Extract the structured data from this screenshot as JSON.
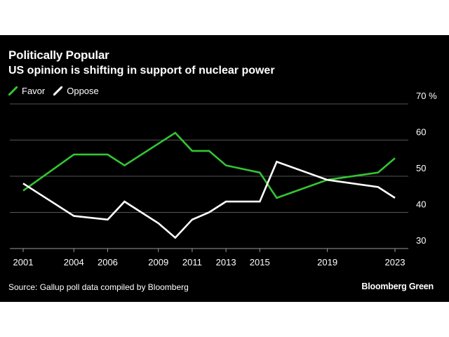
{
  "header": {
    "title": "Politically Popular",
    "subtitle": "US opinion is shifting in support of nuclear power"
  },
  "footer": {
    "source": "Source: Gallup poll data compiled by Bloomberg",
    "brand": "Bloomberg Green"
  },
  "chart_data": {
    "type": "line",
    "title": "Politically Popular",
    "subtitle": "US opinion is shifting in support of nuclear power",
    "xlim": [
      2001,
      2023
    ],
    "ylim": [
      30,
      70
    ],
    "y_ticks": [
      30,
      40,
      50,
      60,
      70
    ],
    "y_tick_labels": [
      "30",
      "40",
      "50",
      "60",
      "70 %"
    ],
    "x_ticks": [
      2001,
      2004,
      2006,
      2009,
      2011,
      2013,
      2015,
      2019,
      2023
    ],
    "x_tick_labels": [
      "2001",
      "2004",
      "2006",
      "2009",
      "2011",
      "2013",
      "2015",
      "2019",
      "2023"
    ],
    "grid": true,
    "legend": "top-left",
    "series": [
      {
        "name": "Favor",
        "color": "#33c533",
        "x": [
          2001,
          2004,
          2005,
          2006,
          2007,
          2010,
          2011,
          2012,
          2013,
          2015,
          2016,
          2019,
          2022,
          2023
        ],
        "values": [
          46,
          56,
          56,
          56,
          53,
          62,
          57,
          57,
          53,
          51,
          44,
          49,
          51,
          55
        ]
      },
      {
        "name": "Oppose",
        "color": "#ffffff",
        "x": [
          2001,
          2004,
          2005,
          2006,
          2007,
          2009,
          2010,
          2011,
          2012,
          2013,
          2015,
          2016,
          2019,
          2022,
          2023
        ],
        "values": [
          48,
          39,
          38.5,
          38,
          43,
          37,
          33,
          38,
          40,
          43,
          43,
          54,
          49,
          47,
          44
        ]
      }
    ]
  }
}
